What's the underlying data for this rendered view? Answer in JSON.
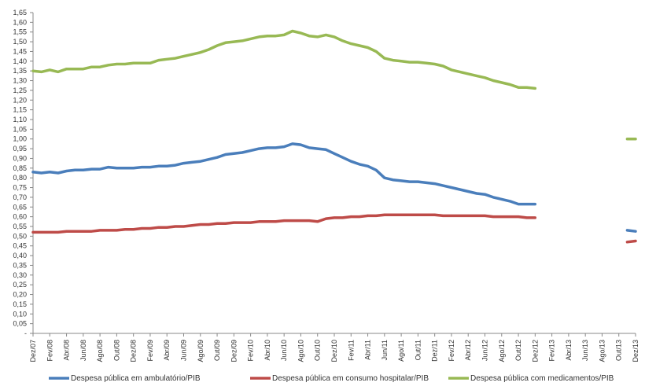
{
  "chart_data": {
    "type": "line",
    "title": "",
    "xlabel": "",
    "ylabel": "",
    "ylim": [
      0,
      1.65
    ],
    "ytick_step": 0.05,
    "grid": false,
    "legend_position": "bottom",
    "x_tick_labels": [
      "Dez/07",
      "Fev/08",
      "Abr/08",
      "Jun/08",
      "Ago/08",
      "Out/08",
      "Dez/08",
      "Fev/09",
      "Abr/09",
      "Jun/09",
      "Ago/09",
      "Out/09",
      "Dez/09",
      "Fev/10",
      "Abr/10",
      "Jun/10",
      "Ago/10",
      "Out/10",
      "Dez/10",
      "Fev/11",
      "Abr/11",
      "Jun/11",
      "Ago/11",
      "Out/11",
      "Dez/11",
      "Fev/12",
      "Abr/12",
      "Jun/12",
      "Ago/12",
      "Out/12",
      "Dez/12",
      "Fev/13",
      "Abr/13",
      "Jun/13",
      "Ago/13",
      "Out/13",
      "Dez/13"
    ],
    "y_tick_labels": [
      "-",
      "0,05",
      "0,10",
      "0,15",
      "0,20",
      "0,25",
      "0,30",
      "0,35",
      "0,40",
      "0,45",
      "0,50",
      "0,55",
      "0,60",
      "0,65",
      "0,70",
      "0,75",
      "0,80",
      "0,85",
      "0,90",
      "0,95",
      "1,00",
      "1,05",
      "1,10",
      "1,15",
      "1,20",
      "1,25",
      "1,30",
      "1,35",
      "1,40",
      "1,45",
      "1,50",
      "1,55",
      "1,60",
      "1,65"
    ],
    "series": [
      {
        "name": "Despesa pública em ambulatório/PIB",
        "color": "#4a7ebb",
        "values": [
          0.83,
          0.825,
          0.83,
          0.825,
          0.835,
          0.84,
          0.84,
          0.845,
          0.845,
          0.855,
          0.85,
          0.85,
          0.85,
          0.855,
          0.855,
          0.86,
          0.86,
          0.865,
          0.875,
          0.88,
          0.885,
          0.895,
          0.905,
          0.92,
          0.925,
          0.93,
          0.94,
          0.95,
          0.955,
          0.955,
          0.96,
          0.975,
          0.97,
          0.955,
          0.95,
          0.945,
          0.925,
          0.905,
          0.885,
          0.87,
          0.86,
          0.84,
          0.8,
          0.79,
          0.785,
          0.78,
          0.78,
          0.775,
          0.77,
          0.76,
          0.75,
          0.74,
          0.73,
          0.72,
          0.715,
          0.7,
          0.69,
          0.68,
          0.665,
          0.665,
          0.665
        ],
        "tail": [
          0.53,
          0.525
        ]
      },
      {
        "name": "Despesa pública em consumo hospitalar/PIB",
        "color": "#be4b48",
        "values": [
          0.52,
          0.52,
          0.52,
          0.52,
          0.525,
          0.525,
          0.525,
          0.525,
          0.53,
          0.53,
          0.53,
          0.535,
          0.535,
          0.54,
          0.54,
          0.545,
          0.545,
          0.55,
          0.55,
          0.555,
          0.56,
          0.56,
          0.565,
          0.565,
          0.57,
          0.57,
          0.57,
          0.575,
          0.575,
          0.575,
          0.58,
          0.58,
          0.58,
          0.58,
          0.575,
          0.59,
          0.595,
          0.595,
          0.6,
          0.6,
          0.605,
          0.605,
          0.61,
          0.61,
          0.61,
          0.61,
          0.61,
          0.61,
          0.61,
          0.605,
          0.605,
          0.605,
          0.605,
          0.605,
          0.605,
          0.6,
          0.6,
          0.6,
          0.6,
          0.595,
          0.595
        ],
        "tail": [
          0.47,
          0.475
        ]
      },
      {
        "name": "Despesa pública com medicamentos/PIB",
        "color": "#98b954",
        "values": [
          1.35,
          1.345,
          1.355,
          1.345,
          1.36,
          1.36,
          1.36,
          1.37,
          1.37,
          1.38,
          1.385,
          1.385,
          1.39,
          1.39,
          1.39,
          1.405,
          1.41,
          1.415,
          1.425,
          1.435,
          1.445,
          1.46,
          1.48,
          1.495,
          1.5,
          1.505,
          1.515,
          1.525,
          1.53,
          1.53,
          1.535,
          1.555,
          1.545,
          1.53,
          1.525,
          1.535,
          1.525,
          1.505,
          1.49,
          1.48,
          1.47,
          1.45,
          1.415,
          1.405,
          1.4,
          1.395,
          1.395,
          1.39,
          1.385,
          1.375,
          1.355,
          1.345,
          1.335,
          1.325,
          1.315,
          1.3,
          1.29,
          1.28,
          1.265,
          1.265,
          1.26
        ],
        "tail": [
          1.0,
          1.0
        ]
      }
    ]
  }
}
